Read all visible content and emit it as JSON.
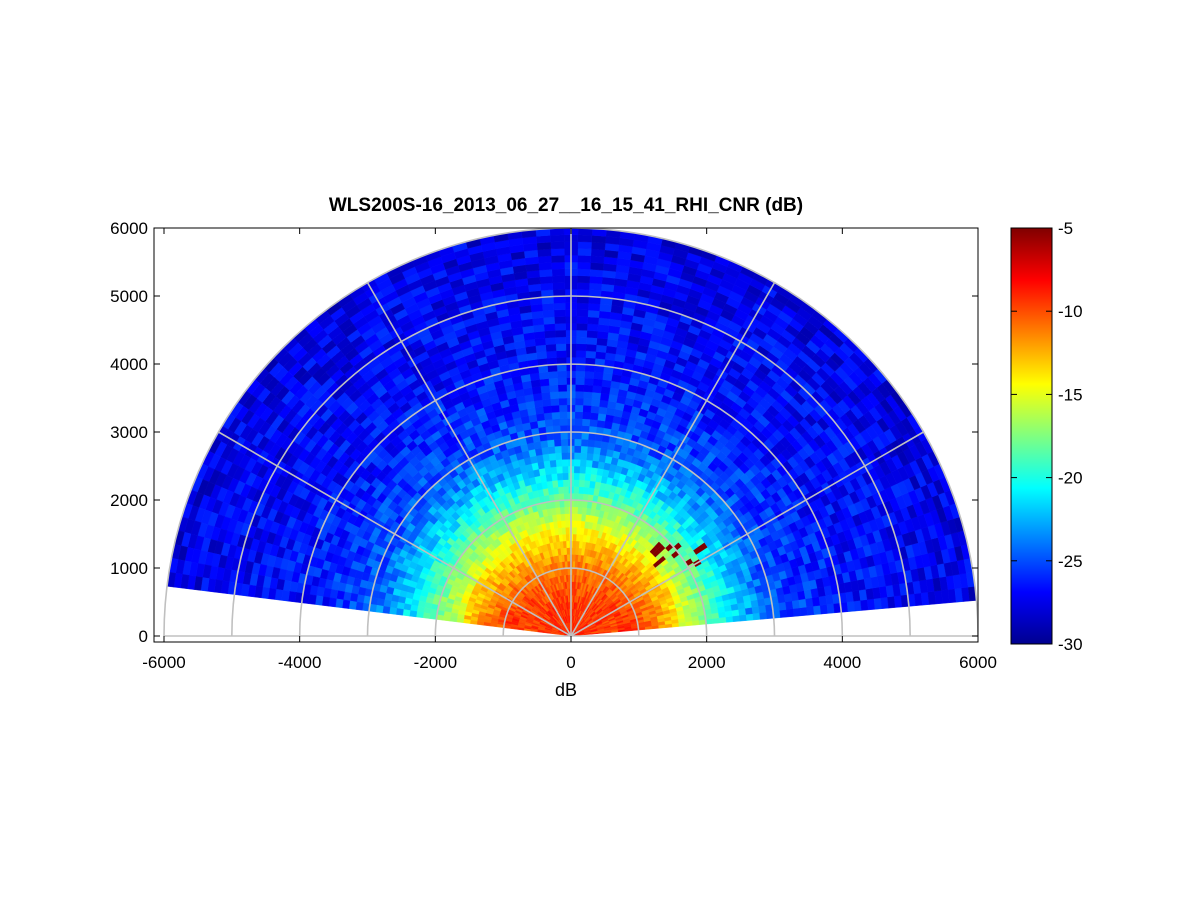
{
  "chart_data": {
    "type": "heatmap",
    "subtype": "polar RHI (range-height indicator) scan",
    "title": "WLS200S-16_2013_06_27__16_15_41_RHI_CNR (dB)",
    "xlabel": "dB",
    "ylabel": "",
    "xlim": [
      -6000,
      6000
    ],
    "ylim": [
      0,
      6000
    ],
    "xticks": [
      "-6000",
      "-4000",
      "-2000",
      "0",
      "2000",
      "4000",
      "6000"
    ],
    "yticks": [
      "0",
      "1000",
      "2000",
      "3000",
      "4000",
      "5000",
      "6000"
    ],
    "grid": "polar",
    "polar_grid": {
      "ring_ranges": [
        1000,
        2000,
        3000,
        4000,
        5000,
        6000
      ],
      "spoke_angles_deg": [
        0,
        30,
        60,
        90,
        120,
        150,
        180
      ]
    },
    "scan": {
      "elevation_start_deg": 5,
      "elevation_end_deg": 173,
      "max_range": 6000
    },
    "colorbar": {
      "colormap": "jet",
      "range": [
        -30,
        -5
      ],
      "ticks": [
        "-5",
        "-10",
        "-15",
        "-20",
        "-25",
        "-30"
      ],
      "tick_values": [
        -5,
        -10,
        -15,
        -20,
        -25,
        -30
      ]
    },
    "cnr_vs_range_profile": [
      {
        "range": 0,
        "cnr": -9
      },
      {
        "range": 500,
        "cnr": -9.5
      },
      {
        "range": 1000,
        "cnr": -11
      },
      {
        "range": 1500,
        "cnr": -14
      },
      {
        "range": 2000,
        "cnr": -18
      },
      {
        "range": 2500,
        "cnr": -22
      },
      {
        "range": 3000,
        "cnr": -25
      },
      {
        "range": 4000,
        "cnr": -26.5
      },
      {
        "range": 5000,
        "cnr": -27
      },
      {
        "range": 6000,
        "cnr": -27.5
      }
    ],
    "features": [
      {
        "label": "strong return near 1000 m range on both sides",
        "cnr": -8
      },
      {
        "label": "isolated high-CNR gates around x=1300..1900, y=1100..1300",
        "cnr": -5
      }
    ],
    "colors": {
      "axis": "#000000",
      "grid": "#c0c0c0",
      "background": "#ffffff"
    }
  }
}
